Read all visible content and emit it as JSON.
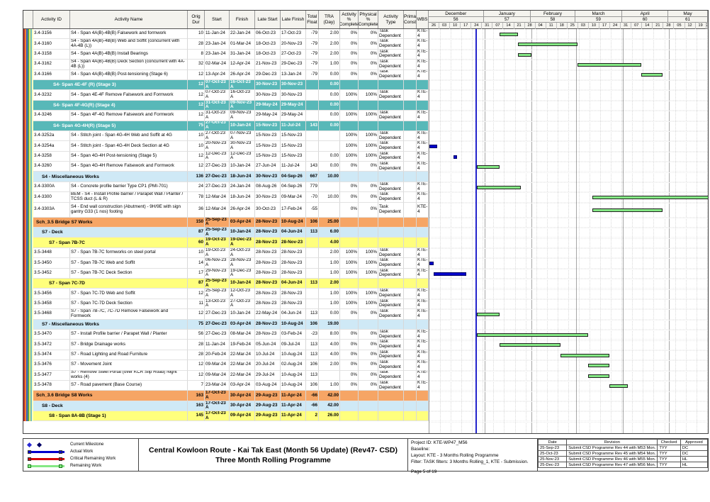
{
  "table": {
    "header_labels": [
      "Activity ID",
      "Activity Name",
      "Orig Dur",
      "Start",
      "Finish",
      "Late Start",
      "Late Finish",
      "Total Float",
      "TRA (Day)",
      "Activity % Complete",
      "Physical % Complete",
      "Activity Type",
      "Prima Const",
      "WBS"
    ]
  },
  "timeline": {
    "months": [
      {
        "label": "December",
        "period": "56",
        "days": 36
      },
      {
        "label": "January",
        "period": "57",
        "days": 31
      },
      {
        "label": "February",
        "period": "58",
        "days": 29
      },
      {
        "label": "March",
        "period": "59",
        "days": 31
      },
      {
        "label": "April",
        "period": "60",
        "days": 30
      },
      {
        "label": "May",
        "period": "61",
        "days": 26
      }
    ],
    "week_tick_labels": [
      "26",
      "03",
      "10",
      "17",
      "24",
      "31",
      "07",
      "14",
      "21",
      "28",
      "04",
      "11",
      "18",
      "25",
      "03",
      "10",
      "17",
      "24",
      "31",
      "07",
      "14",
      "21",
      "28",
      "05",
      "12",
      "19",
      "26"
    ],
    "total_days": 183,
    "data_date_day": 30
  },
  "rows": [
    {
      "t": "task",
      "id": "3.4-3156",
      "name": "S4 - Span 4A(B)-4B(B) Falsework and formwork",
      "dur": "10",
      "start": "11-Jan-24",
      "finish": "22-Jan-24",
      "ls": "06-Oct-23",
      "lf": "17-Oct-23",
      "fl": "-79",
      "tra": "2.00",
      "ap": "0%",
      "pp": "0%",
      "ty": "Task Dependent",
      "wbs": "KTE-4",
      "bars": [
        {
          "k": "rem",
          "s": 46,
          "e": 58
        }
      ]
    },
    {
      "t": "task",
      "id": "3.4-3160",
      "name": "S4 - Span 4A(B)-4B(B) Web and Soffit (concurrent with 4A-4B (L))",
      "dur": "28",
      "start": "23-Jan-24",
      "finish": "01-Mar-24",
      "ls": "18-Oct-23",
      "lf": "20-Nov-23",
      "fl": "-79",
      "tra": "2.00",
      "ap": "0%",
      "pp": "0%",
      "ty": "Task Dependent",
      "wbs": "KTE-4",
      "bars": [
        {
          "k": "rem",
          "s": 58,
          "e": 97
        }
      ]
    },
    {
      "t": "task",
      "id": "3.4-3158",
      "name": "S4 - Span 4A(B)-4B(B) Install Bearings",
      "dur": "8",
      "start": "23-Jan-24",
      "finish": "31-Jan-24",
      "ls": "18-Oct-23",
      "lf": "27-Oct-23",
      "fl": "-79",
      "tra": "2.00",
      "ap": "0%",
      "pp": "0%",
      "ty": "Task Dependent",
      "wbs": "KTE-4",
      "bars": [
        {
          "k": "rem",
          "s": 58,
          "e": 67
        }
      ]
    },
    {
      "t": "task",
      "id": "3.4-3162",
      "name": "S4 - Span 4A(B)-4B(B) Deck Section (concurrent with 4A-4B (L))",
      "dur": "32",
      "start": "02-Mar-24",
      "finish": "12-Apr-24",
      "ls": "21-Nov-23",
      "lf": "29-Dec-23",
      "fl": "-79",
      "tra": "1.00",
      "ap": "0%",
      "pp": "0%",
      "ty": "Task Dependent",
      "wbs": "KTE-4",
      "bars": [
        {
          "k": "rem",
          "s": 97,
          "e": 139
        }
      ]
    },
    {
      "t": "task",
      "id": "3.4-3166",
      "name": "S4 - Span 4A(B)-4B(B) Post-tensioning (Stage 6)",
      "dur": "12",
      "start": "13-Apr-24",
      "finish": "26-Apr-24",
      "ls": "29-Dec-23",
      "lf": "13-Jan-24",
      "fl": "-79",
      "tra": "0.00",
      "ap": "0%",
      "pp": "0%",
      "ty": "Task Dependent",
      "wbs": "KTE-4",
      "bars": [
        {
          "k": "rem",
          "s": 139,
          "e": 153
        }
      ]
    },
    {
      "t": "band",
      "color": "teal",
      "name": "S4- Span 4E-4F (R) (Stage 3)",
      "dur": "12",
      "start": "07-Oct-23 A",
      "finish": "16-Oct-23 A",
      "ls": "30-Nov-23",
      "lf": "30-Nov-23",
      "fl": "",
      "tra": "0.00"
    },
    {
      "t": "task",
      "id": "3.4-3232",
      "name": "S4 - Span 4E-4F Remove Falsework and Formwork",
      "dur": "12",
      "start": "07-Oct-23 A",
      "finish": "16-Oct-23 A",
      "ls": "30-Nov-23",
      "lf": "30-Nov-23",
      "fl": "",
      "tra": "0.00",
      "ap": "100%",
      "pp": "100%",
      "ty": "Task Dependent",
      "wbs": "KTE-4"
    },
    {
      "t": "band",
      "color": "teal",
      "name": "S4- Span 4F-4G(R) (Stage 4)",
      "dur": "12",
      "start": "31-Oct-23 A",
      "finish": "09-Nov-23 A",
      "ls": "29-May-24",
      "lf": "29-May-24",
      "fl": "",
      "tra": "0.00"
    },
    {
      "t": "task",
      "id": "3.4-3246",
      "name": "S4 - Span 4F-4G Remove Falsework and Formwork",
      "dur": "12",
      "start": "31-Oct-23 A",
      "finish": "09-Nov-23 A",
      "ls": "29-May-24",
      "lf": "29-May-24",
      "fl": "",
      "tra": "0.00",
      "ap": "100%",
      "pp": "100%",
      "ty": "Task Dependent",
      "wbs": "KTE-4"
    },
    {
      "t": "band",
      "color": "teal",
      "name": "S4- Span 4G-4H(R) (Stage 5)",
      "dur": "75",
      "start": "27-Oct-23 A",
      "finish": "10-Jan-24",
      "ls": "15-Nov-23",
      "lf": "11-Jul-24",
      "fl": "143",
      "tra": "0.00"
    },
    {
      "t": "task",
      "id": "3.4-3252a",
      "name": "S4 - Stitch joint - Span 4G-4H Web and Soffit at 4G",
      "dur": "10",
      "start": "27-Oct-23 A",
      "finish": "07-Nov-23 A",
      "ls": "15-Nov-23",
      "lf": "15-Nov-23",
      "fl": "",
      "tra": "",
      "ap": "100%",
      "pp": "100%",
      "ty": "Task Dependent",
      "wbs": "KTE-4"
    },
    {
      "t": "task",
      "id": "3.4-3254a",
      "name": "S4 - Stitch joint - Span 4G-4H Deck Section at 4G",
      "dur": "10",
      "start": "20-Nov-23 A",
      "finish": "30-Nov-23 A",
      "ls": "15-Nov-23",
      "lf": "15-Nov-23",
      "fl": "",
      "tra": "",
      "ap": "100%",
      "pp": "100%",
      "ty": "Task Dependent",
      "wbs": "KTE-4",
      "bars": [
        {
          "k": "act",
          "s": 0,
          "e": 5
        }
      ]
    },
    {
      "t": "task",
      "id": "3.4-3258",
      "name": "S4 - Span 4G-4H Post-tensioning (Stage 5)",
      "dur": "12",
      "start": "12-Dec-23 A",
      "finish": "12-Dec-23 A",
      "ls": "15-Nov-23",
      "lf": "15-Nov-23",
      "fl": "",
      "tra": "0.00",
      "ap": "100%",
      "pp": "100%",
      "ty": "Task Dependent",
      "wbs": "KTE-4",
      "bars": [
        {
          "k": "act",
          "s": 16,
          "e": 18
        }
      ]
    },
    {
      "t": "task",
      "id": "3.4-3260",
      "name": "S4 - Span 4G-4H Remove Falsework and Formwork",
      "dur": "12",
      "start": "27-Dec-23",
      "finish": "10-Jan-24",
      "ls": "27-Jun-24",
      "lf": "11-Jul-24",
      "fl": "143",
      "tra": "0.00",
      "ap": "0%",
      "pp": "0%",
      "ty": "Task Dependent",
      "wbs": "KTE-4",
      "bars": [
        {
          "k": "rem",
          "s": 31,
          "e": 46
        }
      ]
    },
    {
      "t": "band",
      "color": "blue",
      "name": "S4 - Miscellaneous Works",
      "dur": "136",
      "start": "27-Dec-23",
      "finish": "18-Jun-24",
      "ls": "30-Nov-23",
      "lf": "04-Sep-26",
      "fl": "667",
      "tra": "10.00"
    },
    {
      "t": "task",
      "id": "3.4-3300A",
      "name": "S4 - Concrete profile barrier Type CP1 (PMI-701)",
      "dur": "24",
      "start": "27-Dec-23",
      "finish": "24-Jan-24",
      "ls": "08-Aug-26",
      "lf": "04-Sep-26",
      "fl": "779",
      "tra": "",
      "ap": "0%",
      "pp": "0%",
      "ty": "Task Dependent",
      "wbs": "KTE-4",
      "bars": [
        {
          "k": "rem",
          "s": 31,
          "e": 60
        }
      ]
    },
    {
      "t": "task",
      "id": "3.4-3300",
      "name": "BEM - S4 - Install Profile barrier / Parapet Wall / Planter / TCSS duct (L & R)",
      "dur": "78",
      "start": "12-Mar-24",
      "finish": "18-Jun-24",
      "ls": "30-Nov-23",
      "lf": "09-Mar-24",
      "fl": "-70",
      "tra": "10.00",
      "ap": "0%",
      "pp": "0%",
      "ty": "Task Dependent",
      "wbs": "KTE-4",
      "bars": [
        {
          "k": "rem",
          "s": 107,
          "e": 183
        }
      ]
    },
    {
      "t": "task",
      "id": "3.4-3303A",
      "name": "S4 - End wall construction (Abutment) - 9H/9E with sign gantry G33 (1 nos) footing",
      "dur": "36",
      "start": "12-Mar-24",
      "finish": "26-Apr-24",
      "ls": "30-Oct-23",
      "lf": "17-Feb-24",
      "fl": "-55",
      "tra": "",
      "ap": "0%",
      "pp": "0%",
      "ty": "Task Dependent",
      "wbs": "KTE-4",
      "h": 21,
      "bars": [
        {
          "k": "rem",
          "s": 107,
          "e": 153
        }
      ]
    },
    {
      "t": "band",
      "color": "orange",
      "name": "Sch_3.5 Bridge S7 Works",
      "dur": "150",
      "start": "25-Sep-23 A",
      "finish": "03-Apr-24",
      "ls": "28-Nov-23",
      "lf": "10-Aug-24",
      "fl": "106",
      "tra": "25.00"
    },
    {
      "t": "band",
      "color": "blue",
      "name": "S7 - Deck",
      "dur": "87",
      "start": "25-Sep-23 A",
      "finish": "10-Jan-24",
      "ls": "28-Nov-23",
      "lf": "04-Jun-24",
      "fl": "113",
      "tra": "6.00"
    },
    {
      "t": "band",
      "color": "yellow",
      "name": "S7 - Span 7B-7C",
      "dur": "60",
      "start": "19-Oct-23 A",
      "finish": "19-Dec-23 A",
      "ls": "28-Nov-23",
      "lf": "28-Nov-23",
      "fl": "",
      "tra": "4.00"
    },
    {
      "t": "task",
      "id": "3.5-3448",
      "name": "S7 - Span 7B-7C formworks on steel portal",
      "dur": "10",
      "start": "19-Oct-23 A",
      "finish": "24-Oct-23 A",
      "ls": "28-Nov-23",
      "lf": "28-Nov-23",
      "fl": "",
      "tra": "2.00",
      "ap": "100%",
      "pp": "100%",
      "ty": "Task Dependent",
      "wbs": "KTE-4"
    },
    {
      "t": "task",
      "id": "3.5-3450",
      "name": "S7 - Span 7B-7C Web and Soffit",
      "dur": "14",
      "start": "06-Nov-23 A",
      "finish": "28-Nov-23 A",
      "ls": "28-Nov-23",
      "lf": "28-Nov-23",
      "fl": "",
      "tra": "1.00",
      "ap": "100%",
      "pp": "100%",
      "ty": "Task Dependent",
      "wbs": "KTE-4",
      "bars": [
        {
          "k": "act",
          "s": 0,
          "e": 3
        }
      ]
    },
    {
      "t": "task",
      "id": "3.5-3452",
      "name": "S7 - Span 7B-7C Deck Section",
      "dur": "17",
      "start": "29-Nov-23 A",
      "finish": "19-Dec-23 A",
      "ls": "28-Nov-23",
      "lf": "28-Nov-23",
      "fl": "",
      "tra": "1.00",
      "ap": "100%",
      "pp": "100%",
      "ty": "Task Dependent",
      "wbs": "KTE-4",
      "bars": [
        {
          "k": "act",
          "s": 3,
          "e": 24
        }
      ]
    },
    {
      "t": "band",
      "color": "yellow",
      "name": "S7 - Span 7C-7D",
      "dur": "87",
      "start": "25-Sep-23 A",
      "finish": "10-Jan-24",
      "ls": "28-Nov-23",
      "lf": "04-Jun-24",
      "fl": "113",
      "tra": "2.00"
    },
    {
      "t": "task",
      "id": "3.5-3456",
      "name": "S7 - Span 7C-7D Web and Soffit",
      "dur": "12",
      "start": "25-Sep-23 A",
      "finish": "12-Oct-23 A",
      "ls": "28-Nov-23",
      "lf": "28-Nov-23",
      "fl": "",
      "tra": "1.00",
      "ap": "100%",
      "pp": "100%",
      "ty": "Task Dependent",
      "wbs": "KTE-4"
    },
    {
      "t": "task",
      "id": "3.5-3458",
      "name": "S7 - Span 7C-7D Deck Section",
      "dur": "11",
      "start": "13-Oct-23 A",
      "finish": "27-Oct-23 A",
      "ls": "28-Nov-23",
      "lf": "28-Nov-23",
      "fl": "",
      "tra": "1.00",
      "ap": "100%",
      "pp": "100%",
      "ty": "Task Dependent",
      "wbs": "KTE-4"
    },
    {
      "t": "task",
      "id": "3.5-3468",
      "name": "S7 - Span 7B-7C, 7C-7D Remove Falsework and Formwork",
      "dur": "12",
      "start": "27-Dec-23",
      "finish": "10-Jan-24",
      "ls": "22-May-24",
      "lf": "04-Jun-24",
      "fl": "113",
      "tra": "0.00",
      "ap": "0%",
      "pp": "0%",
      "ty": "Task Dependent",
      "wbs": "KTE-4",
      "bars": [
        {
          "k": "rem",
          "s": 31,
          "e": 46
        }
      ]
    },
    {
      "t": "band",
      "color": "blue",
      "name": "S7 - Miscellaneous Works",
      "dur": "75",
      "start": "27-Dec-23",
      "finish": "03-Apr-24",
      "ls": "28-Nov-23",
      "lf": "10-Aug-24",
      "fl": "106",
      "tra": "19.00"
    },
    {
      "t": "task",
      "id": "3.5-3470",
      "name": "S7 - Install Profile barrier / Parapet Wall / Planter",
      "dur": "56",
      "start": "27-Dec-23",
      "finish": "08-Mar-24",
      "ls": "28-Nov-23",
      "lf": "03-Feb-24",
      "fl": "-23",
      "tra": "8.00",
      "ap": "0%",
      "pp": "0%",
      "ty": "Task Dependent",
      "wbs": "KTE-4",
      "bars": [
        {
          "k": "rem",
          "s": 31,
          "e": 104
        }
      ]
    },
    {
      "t": "task",
      "id": "3.5-3472",
      "name": "S7 - Bridge Drainage works",
      "dur": "28",
      "start": "11-Jan-24",
      "finish": "19-Feb-24",
      "ls": "05-Jun-24",
      "lf": "09-Jul-24",
      "fl": "113",
      "tra": "4.00",
      "ap": "0%",
      "pp": "0%",
      "ty": "Task Dependent",
      "wbs": "KTE-4",
      "bars": [
        {
          "k": "rem",
          "s": 46,
          "e": 86
        }
      ]
    },
    {
      "t": "task",
      "id": "3.5-3474",
      "name": "S7 - Road Lighting and Road Furniture",
      "dur": "28",
      "start": "20-Feb-24",
      "finish": "22-Mar-24",
      "ls": "10-Jul-24",
      "lf": "10-Aug-24",
      "fl": "113",
      "tra": "4.00",
      "ap": "0%",
      "pp": "0%",
      "ty": "Task Dependent",
      "wbs": "KTE-4",
      "bars": [
        {
          "k": "rem",
          "s": 86,
          "e": 118
        }
      ]
    },
    {
      "t": "task",
      "id": "3.5-3476",
      "name": "S7 - Movement Joint",
      "dur": "12",
      "start": "09-Mar-24",
      "finish": "22-Mar-24",
      "ls": "20-Jul-24",
      "lf": "02-Aug-24",
      "fl": "106",
      "tra": "2.00",
      "ap": "0%",
      "pp": "0%",
      "ty": "Task Dependent",
      "wbs": "KTE-4",
      "bars": [
        {
          "k": "rem",
          "s": 104,
          "e": 118
        }
      ]
    },
    {
      "t": "task",
      "id": "3.5-3477",
      "name": "S7 - Remove Steel Portal (over KCR Slip Road) Night works (4)",
      "dur": "12",
      "start": "09-Mar-24",
      "finish": "22-Mar-24",
      "ls": "29-Jul-24",
      "lf": "10-Aug-24",
      "fl": "113",
      "tra": "",
      "ap": "0%",
      "pp": "0%",
      "ty": "Task Dependent",
      "wbs": "KTE-4",
      "bars": [
        {
          "k": "rem",
          "s": 104,
          "e": 118
        }
      ]
    },
    {
      "t": "task",
      "id": "3.5-3478",
      "name": "S7 - Road pavement (Base Course)",
      "dur": "7",
      "start": "23-Mar-24",
      "finish": "03-Apr-24",
      "ls": "03-Aug-24",
      "lf": "10-Aug-24",
      "fl": "106",
      "tra": "1.00",
      "ap": "0%",
      "pp": "0%",
      "ty": "Task Dependent",
      "wbs": "KTE-4",
      "bars": [
        {
          "k": "rem",
          "s": 118,
          "e": 130
        }
      ]
    },
    {
      "t": "band",
      "color": "orange",
      "name": "Sch_3.6 Bridge S8 Works",
      "dur": "163",
      "start": "17-Oct-23 A",
      "finish": "30-Apr-24",
      "ls": "29-Aug-23",
      "lf": "11-Apr-24",
      "fl": "-66",
      "tra": "42.00"
    },
    {
      "t": "band",
      "color": "blue",
      "name": "S8 - Deck",
      "dur": "163",
      "start": "17-Oct-23 A",
      "finish": "30-Apr-24",
      "ls": "29-Aug-23",
      "lf": "11-Apr-24",
      "fl": "-66",
      "tra": "42.00"
    },
    {
      "t": "band",
      "color": "yellow",
      "name": "S8 - Span 8A-8B (Stage 1)",
      "dur": "145",
      "start": "17-Oct-23 A",
      "finish": "09-Apr-24",
      "ls": "29-Aug-23",
      "lf": "11-Apr-24",
      "fl": "2",
      "tra": "26.00"
    }
  ],
  "legend": [
    {
      "kind": "milestone",
      "label": "Current Milestone"
    },
    {
      "kind": "actual",
      "label": "Actual Work"
    },
    {
      "kind": "critical",
      "label": "Critical Remaining Work"
    },
    {
      "kind": "remaining",
      "label": "Remaining Work"
    }
  ],
  "title_block": {
    "line1": "Central Kowloon Route - Kai Tak East (Month 56 Update) (Rev47- CSD)",
    "line2": "Three Month Rolling Programme"
  },
  "footer_info": {
    "lines": [
      "Project ID: KTE-WP47_M56",
      "Baseline:",
      "Layout: KTE - 3 Months Rolling Programme",
      "Filter: TASK filters: 3 Months Rolling_1, KTE - Submission."
    ],
    "page": "Page 5 of 19"
  },
  "revision_table": {
    "headers": [
      "Date",
      "Revision",
      "Checked",
      "Approved"
    ],
    "rows": [
      [
        "25-Sep-23",
        "Submit CSD Programme Rev 44 with M53 Mon.",
        "TYY",
        "DC"
      ],
      [
        "25-Oct-23",
        "Submit CSD Programme Rev 45 with M54 Mon.",
        "TYY",
        "DC"
      ],
      [
        "25-Nov-23",
        "Submit CSD Programme Rev 46 with M55 Mon.",
        "TYY",
        "HL"
      ],
      [
        "25-Dec-23",
        "Submit CSD Programme Rev 47 with M56 Mon.",
        "TYY",
        "HL"
      ]
    ]
  },
  "colors": {
    "band_teal": "#58b8b8",
    "band_blue": "#cfe9f6",
    "band_yellow": "#ffff7d",
    "band_orange": "#f6a565",
    "bar_remaining": "#84e884",
    "bar_actual": "#0000cc",
    "bar_critical": "#d40000",
    "data_date_line": "#2323cc",
    "stripe_colors": [
      "#b03030",
      "#f08030",
      "#4060c0",
      "#50a050",
      "#f0e060",
      "#70c0c0",
      "#ffffc0"
    ]
  }
}
